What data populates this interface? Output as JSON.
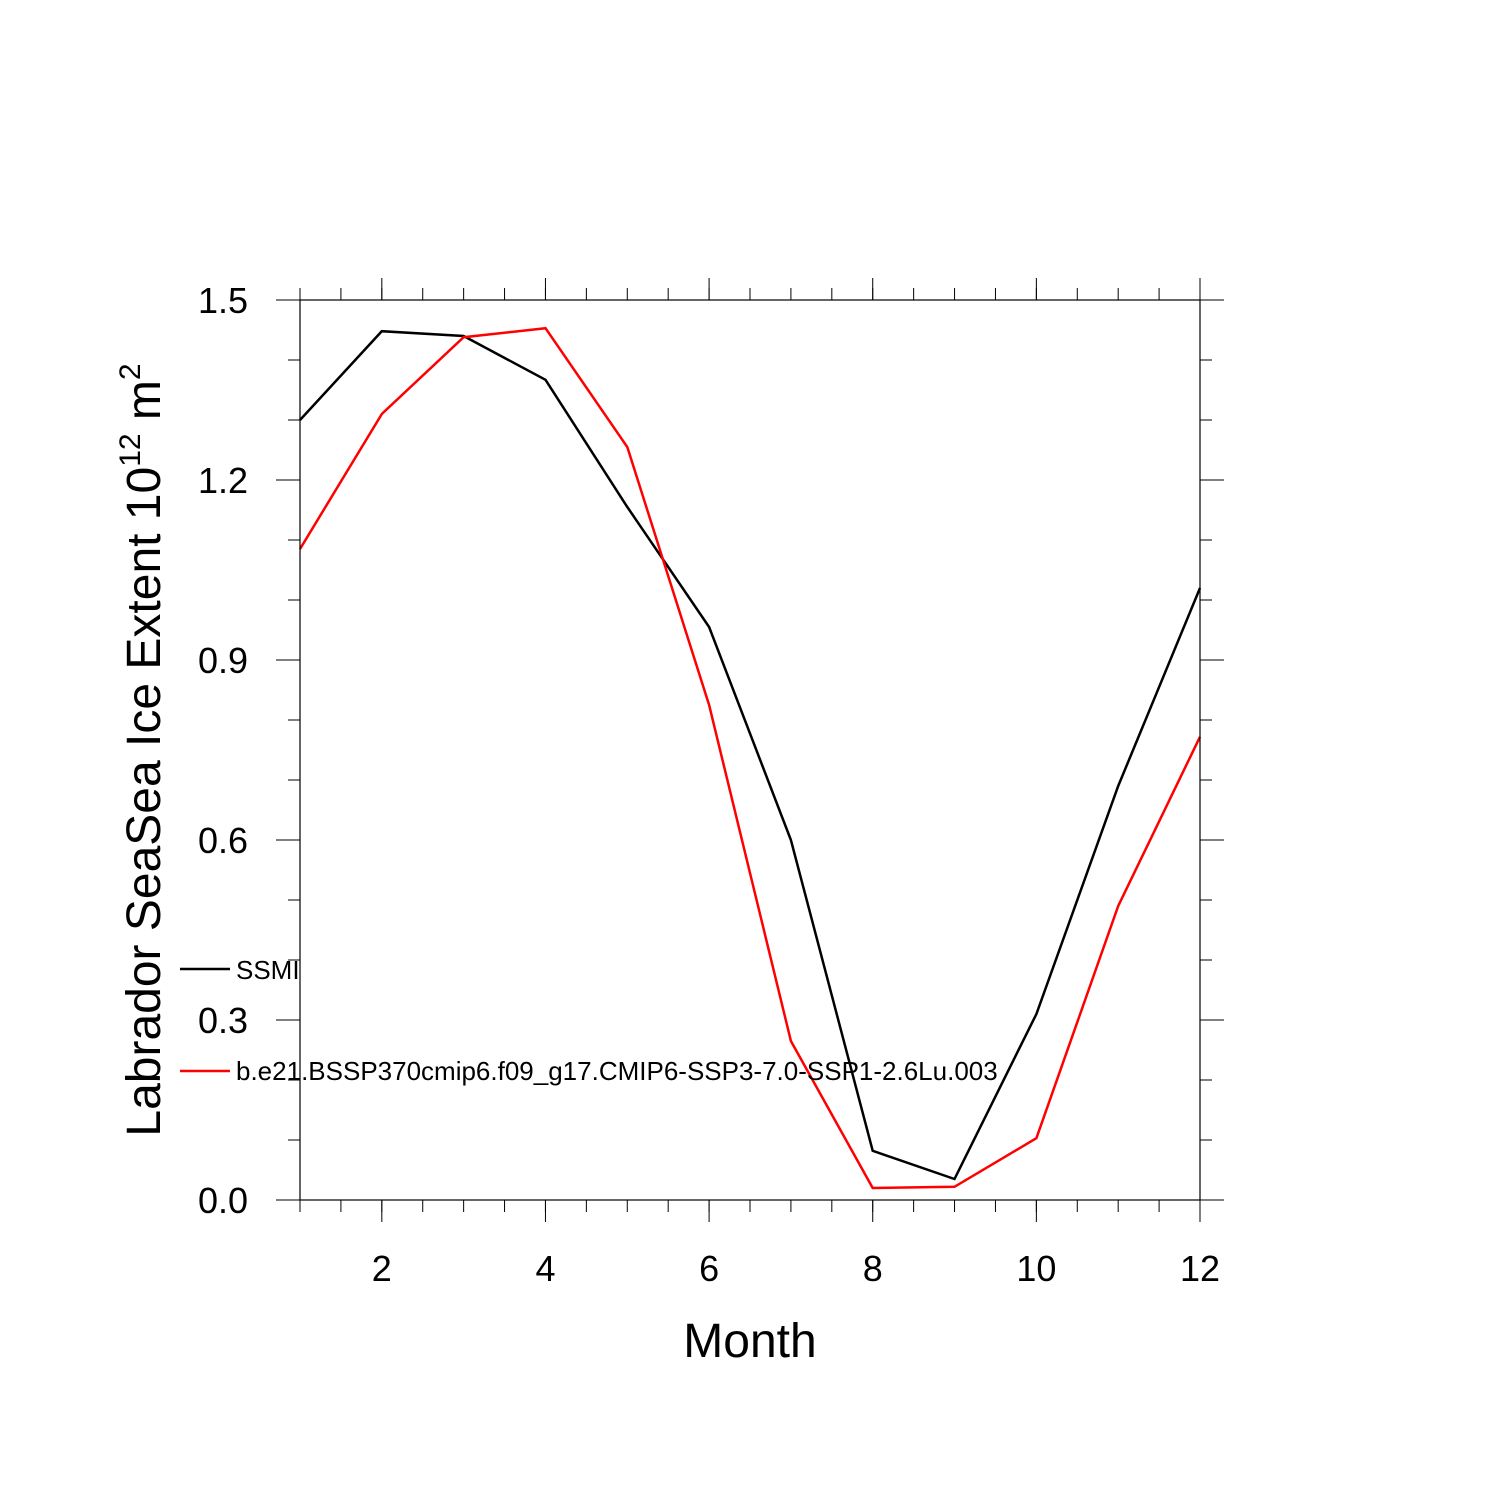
{
  "chart_data": {
    "type": "line",
    "xlabel": "Month",
    "ylabel": {
      "main": "Labrador SeaSea Ice Extent 10",
      "superscript": "12",
      "unit": " m",
      "unit_superscript": "2"
    },
    "xlim": [
      1,
      12
    ],
    "ylim": [
      0,
      1.5
    ],
    "x_ticks": [
      2,
      4,
      6,
      8,
      10,
      12
    ],
    "x_tick_labels": [
      "2",
      "4",
      "6",
      "8",
      "10",
      "12"
    ],
    "y_ticks": [
      0,
      0.3,
      0.6,
      0.9,
      1.2,
      1.5
    ],
    "y_tick_labels": [
      "0.0",
      "0.3",
      "0.6",
      "0.9",
      "1.2",
      "1.5"
    ],
    "grid": false,
    "legend_position": "lower-left",
    "x": [
      1,
      2,
      3,
      4,
      5,
      6,
      7,
      8,
      9,
      10,
      11,
      12
    ],
    "series": [
      {
        "name": "SSMI",
        "color": "#000000",
        "values": [
          1.3,
          1.448,
          1.44,
          1.367,
          1.155,
          0.955,
          0.6,
          0.082,
          0.035,
          0.31,
          0.69,
          1.02
        ]
      },
      {
        "name": "b.e21.BSSP370cmip6.f09_g17.CMIP6-SSP3-7.0-SSP1-2.6Lu.003",
        "color": "#ff0000",
        "values": [
          1.085,
          1.31,
          1.438,
          1.453,
          1.255,
          0.825,
          0.265,
          0.02,
          0.022,
          0.103,
          0.49,
          0.772
        ]
      }
    ]
  }
}
